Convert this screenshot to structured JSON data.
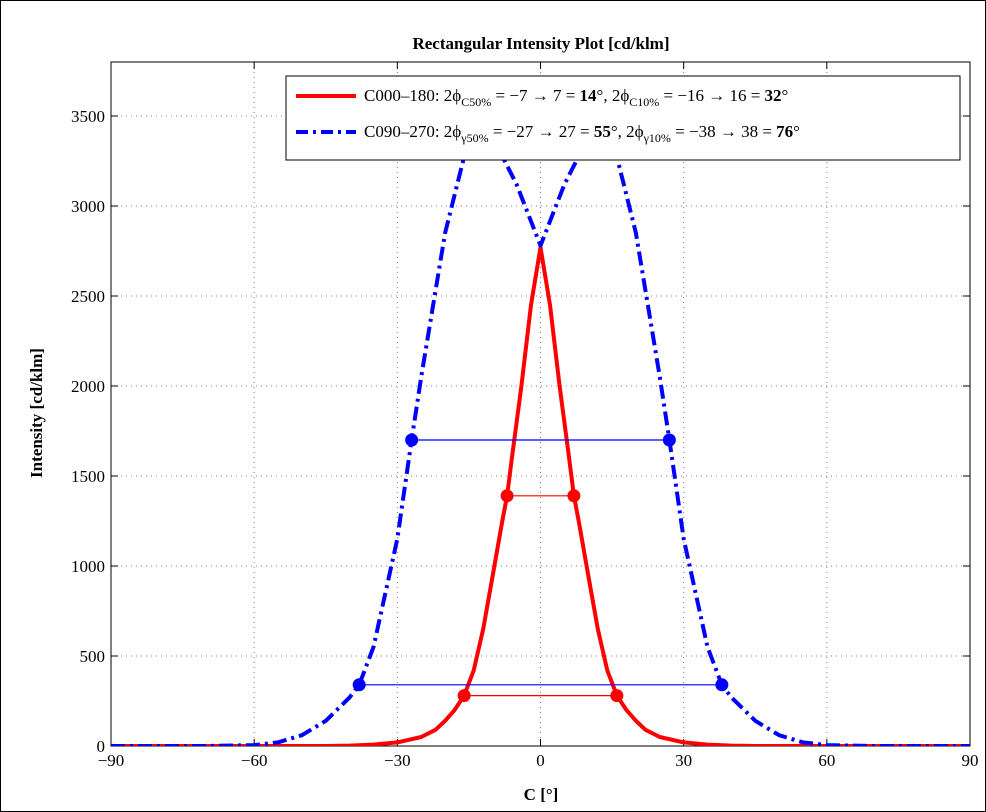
{
  "chart_data": {
    "type": "line",
    "title": "Rectangular Intensity Plot [cd/klm]",
    "xlabel": "C [°]",
    "ylabel": "Intensity [cd/klm]",
    "xlim": [
      -90,
      90
    ],
    "ylim": [
      0,
      3800
    ],
    "xticks": [
      -90,
      -60,
      -30,
      0,
      30,
      60,
      90
    ],
    "xtick_labels": [
      "−90",
      "−60",
      "−30",
      "0",
      "30",
      "60",
      "90"
    ],
    "yticks": [
      0,
      500,
      1000,
      1500,
      2000,
      2500,
      3000,
      3500
    ],
    "ytick_labels": [
      "0",
      "500",
      "1000",
      "1500",
      "2000",
      "2500",
      "3000",
      "3500"
    ],
    "grid": true,
    "legend_position": "top-right",
    "series": [
      {
        "name": "C000–180",
        "color": "#ff0000",
        "style": "solid",
        "x": [
          -90,
          -60,
          -45,
          -40,
          -35,
          -30,
          -25,
          -22,
          -20,
          -18,
          -16,
          -14,
          -12,
          -10,
          -8,
          -7,
          -6,
          -4,
          -2,
          0,
          2,
          4,
          6,
          7,
          8,
          10,
          12,
          14,
          16,
          18,
          20,
          22,
          25,
          30,
          35,
          40,
          45,
          60,
          90
        ],
        "y": [
          0,
          0,
          0,
          2,
          8,
          20,
          50,
          90,
          140,
          200,
          280,
          420,
          650,
          950,
          1250,
          1390,
          1600,
          2000,
          2450,
          2770,
          2450,
          2000,
          1600,
          1390,
          1250,
          950,
          650,
          420,
          280,
          200,
          140,
          90,
          50,
          20,
          8,
          2,
          0,
          0,
          0
        ]
      },
      {
        "name": "C090–270",
        "color": "#0000ff",
        "style": "dashdot",
        "x": [
          -90,
          -70,
          -60,
          -55,
          -50,
          -45,
          -40,
          -38,
          -35,
          -30,
          -27,
          -25,
          -20,
          -15,
          -12,
          -10,
          -5,
          0,
          5,
          10,
          12,
          15,
          20,
          25,
          27,
          30,
          35,
          38,
          40,
          45,
          50,
          55,
          60,
          70,
          90
        ],
        "y": [
          0,
          0,
          5,
          20,
          60,
          140,
          270,
          340,
          550,
          1150,
          1700,
          2050,
          2850,
          3380,
          3430,
          3380,
          3120,
          2780,
          3120,
          3380,
          3430,
          3380,
          2850,
          2050,
          1700,
          1150,
          550,
          340,
          270,
          140,
          60,
          20,
          5,
          0,
          0
        ]
      }
    ],
    "spans": [
      {
        "series": "C000–180",
        "level": "50%",
        "x1": -7,
        "x2": 7,
        "y": 1390,
        "color": "#ff0000"
      },
      {
        "series": "C000–180",
        "level": "10%",
        "x1": -16,
        "x2": 16,
        "y": 280,
        "color": "#ff0000"
      },
      {
        "series": "C090–270",
        "level": "50%",
        "x1": -27,
        "x2": 27,
        "y": 1700,
        "color": "#0000ff"
      },
      {
        "series": "C090–270",
        "level": "10%",
        "x1": -38,
        "x2": 38,
        "y": 340,
        "color": "#0000ff"
      }
    ],
    "legend": [
      {
        "series": "C000–180",
        "prefix": "C000–180: 2ϕ",
        "sub1": "C50%",
        "mid1": " = −7 → 7 = ",
        "bold1": "14",
        "mid2": "°, 2ϕ",
        "sub2": "C10%",
        "mid3": " = −16 → 16 = ",
        "bold2": "32",
        "suffix": "°"
      },
      {
        "series": "C090–270",
        "prefix": "C090–270: 2ϕ",
        "sub1": "γ50%",
        "mid1": " = −27 → 27 = ",
        "bold1": "55",
        "mid2": "°, 2ϕ",
        "sub2": "γ10%",
        "mid3": " = −38 → 38 = ",
        "bold2": "76",
        "suffix": "°"
      }
    ]
  }
}
